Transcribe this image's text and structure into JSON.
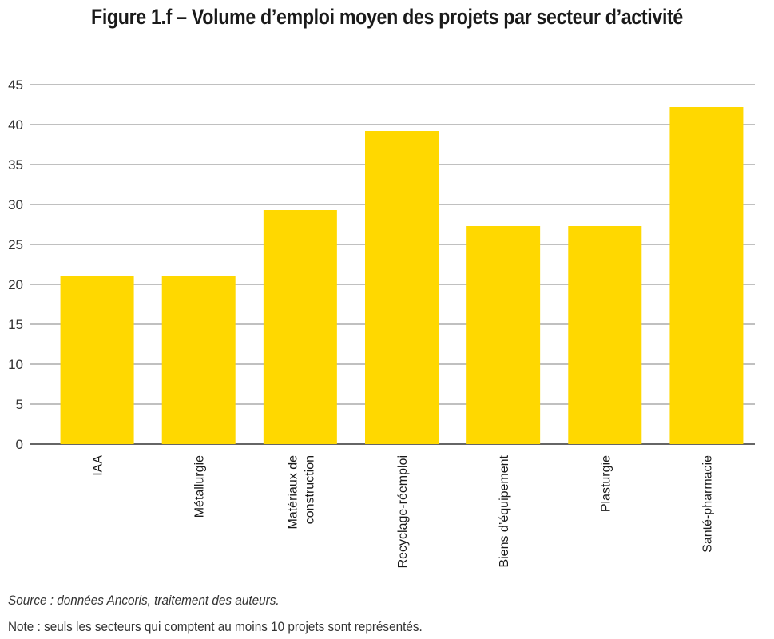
{
  "title": "Figure 1.f – Volume d’emploi moyen des projets par secteur d’activité",
  "source": "Source : données Ancoris, traitement des auteurs.",
  "note": "Note : seuls les secteurs qui comptent au moins 10 projets sont représentés.",
  "chart_data": {
    "type": "bar",
    "categories": [
      [
        "IAA"
      ],
      [
        "Métallurgie"
      ],
      [
        "Matériaux de",
        "construction"
      ],
      [
        "Recyclage-réemploi"
      ],
      [
        "Biens d’équipement"
      ],
      [
        "Plasturgie"
      ],
      [
        "Santé-pharmacie"
      ]
    ],
    "values": [
      21,
      21,
      29.3,
      39.2,
      27.3,
      27.3,
      42.2
    ],
    "ylim": [
      0,
      45
    ],
    "yticks": [
      0,
      5,
      10,
      15,
      20,
      25,
      30,
      35,
      40,
      45
    ],
    "grid": true,
    "bar_color": "#FFD800",
    "grid_color": "#808080"
  }
}
